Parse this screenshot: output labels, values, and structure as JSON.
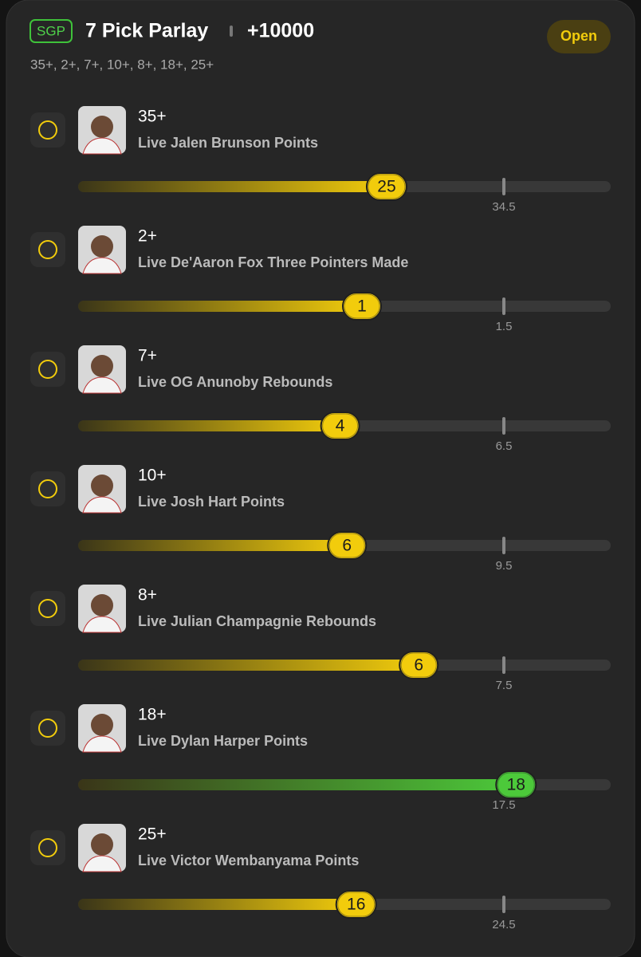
{
  "header": {
    "badge": "SGP",
    "title": "7 Pick Parlay",
    "odds": "+10000",
    "status": "Open",
    "summary": "35+, 2+, 7+, 10+, 8+, 18+, 25+"
  },
  "legs": [
    {
      "target": "35+",
      "label": "Live Jalen Brunson Points",
      "current": 25,
      "line": 34.5,
      "color": "#f2cc0c"
    },
    {
      "target": "2+",
      "label": "Live De'Aaron Fox Three Pointers Made",
      "current": 1,
      "line": 1.5,
      "color": "#f2cc0c"
    },
    {
      "target": "7+",
      "label": "Live OG Anunoby Rebounds",
      "current": 4,
      "line": 6.5,
      "color": "#f2cc0c"
    },
    {
      "target": "10+",
      "label": "Live Josh Hart Points",
      "current": 6,
      "line": 9.5,
      "color": "#f2cc0c"
    },
    {
      "target": "8+",
      "label": "Live Julian Champagnie Rebounds",
      "current": 6,
      "line": 7.5,
      "color": "#f2cc0c"
    },
    {
      "target": "18+",
      "label": "Live Dylan Harper Points",
      "current": 18,
      "line": 17.5,
      "color": "#4cc93a"
    },
    {
      "target": "25+",
      "label": "Live Victor Wembanyama Points",
      "current": 16,
      "line": 24.5,
      "color": "#f2cc0c"
    }
  ]
}
